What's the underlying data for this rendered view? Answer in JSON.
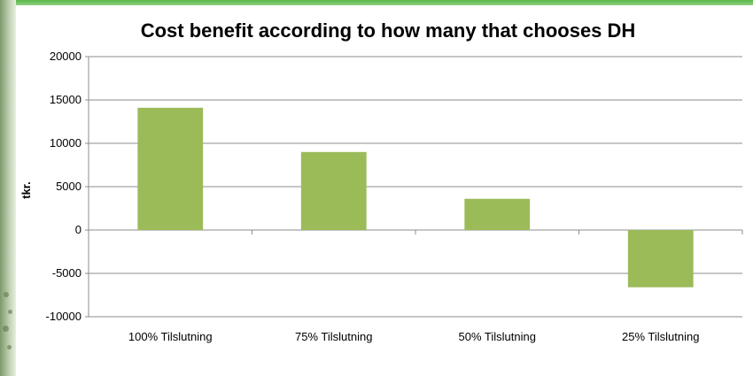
{
  "chart_data": {
    "type": "bar",
    "title": "Cost benefit according to how many that chooses DH",
    "xlabel": "",
    "ylabel": "tkr.",
    "categories": [
      "100% Tilslutning",
      "75% Tilslutning",
      "50% Tilslutning",
      "25% Tilslutning"
    ],
    "values": [
      14100,
      9000,
      3600,
      -6600
    ],
    "ylim": [
      -10000,
      20000
    ],
    "yticks": [
      20000,
      15000,
      10000,
      5000,
      0,
      -5000,
      -10000
    ],
    "grid": true,
    "legend": "none",
    "bar_color": "#9bbb59",
    "grid_color": "#8c8c8c"
  }
}
